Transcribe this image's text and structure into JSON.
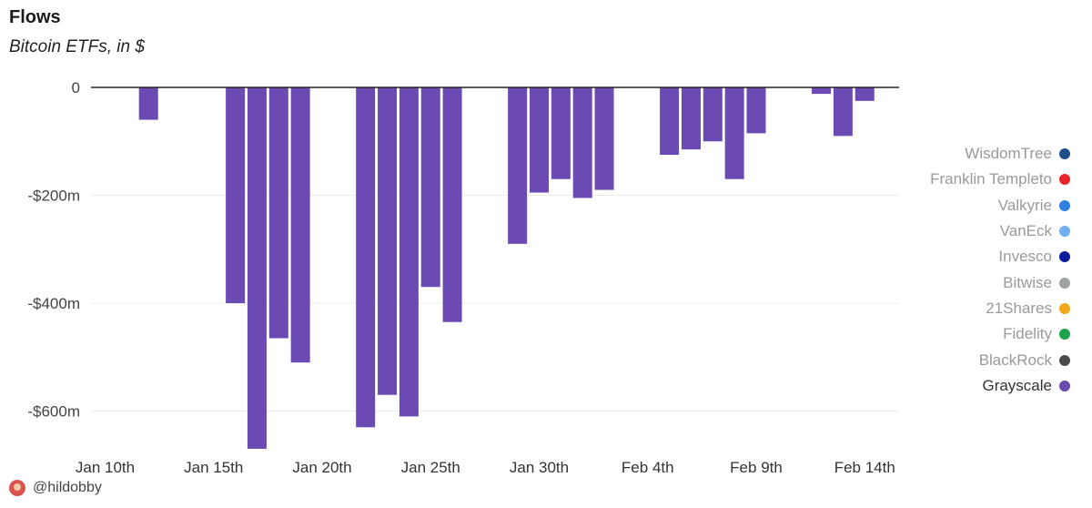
{
  "header": {
    "title": "Flows",
    "subtitle": "Bitcoin ETFs, in $"
  },
  "footer": {
    "handle": "@hildobby"
  },
  "legend": {
    "items": [
      {
        "label": "WisdomTree",
        "color": "#1f4e8c"
      },
      {
        "label": "Franklin Templeto",
        "color": "#e8262c"
      },
      {
        "label": "Valkyrie",
        "color": "#2f7fe0"
      },
      {
        "label": "VanEck",
        "color": "#6fb0ee"
      },
      {
        "label": "Invesco",
        "color": "#0a1a9c"
      },
      {
        "label": "Bitwise",
        "color": "#9fa3a0"
      },
      {
        "label": "21Shares",
        "color": "#f2a71b"
      },
      {
        "label": "Fidelity",
        "color": "#1aa34a"
      },
      {
        "label": "BlackRock",
        "color": "#4a4a4a"
      },
      {
        "label": "Grayscale",
        "color": "#6b4bb3"
      }
    ]
  },
  "chart_data": {
    "type": "bar",
    "title": "Flows",
    "subtitle": "Bitcoin ETFs, in $",
    "bar_color": "#6b4bb3",
    "ylim": [
      -680,
      0
    ],
    "y_ticks": [
      {
        "value": 0,
        "label": "0"
      },
      {
        "value": -200,
        "label": "-$200m"
      },
      {
        "value": -400,
        "label": "-$400m"
      },
      {
        "value": -600,
        "label": "-$600m"
      }
    ],
    "x_ticks": [
      {
        "day": 0,
        "label": "Jan 10th"
      },
      {
        "day": 5,
        "label": "Jan 15th"
      },
      {
        "day": 10,
        "label": "Jan 20th"
      },
      {
        "day": 15,
        "label": "Jan 25th"
      },
      {
        "day": 20,
        "label": "Jan 30th"
      },
      {
        "day": 25,
        "label": "Feb 4th"
      },
      {
        "day": 30,
        "label": "Feb 9th"
      },
      {
        "day": 35,
        "label": "Feb 14th"
      }
    ],
    "series": [
      {
        "name": "Grayscale",
        "points": [
          {
            "day": 2,
            "value": -60
          },
          {
            "day": 6,
            "value": -400
          },
          {
            "day": 7,
            "value": -670
          },
          {
            "day": 8,
            "value": -465
          },
          {
            "day": 9,
            "value": -510
          },
          {
            "day": 12,
            "value": -630
          },
          {
            "day": 13,
            "value": -570
          },
          {
            "day": 14,
            "value": -610
          },
          {
            "day": 15,
            "value": -370
          },
          {
            "day": 16,
            "value": -435
          },
          {
            "day": 19,
            "value": -290
          },
          {
            "day": 20,
            "value": -195
          },
          {
            "day": 21,
            "value": -170
          },
          {
            "day": 22,
            "value": -205
          },
          {
            "day": 23,
            "value": -190
          },
          {
            "day": 26,
            "value": -125
          },
          {
            "day": 27,
            "value": -115
          },
          {
            "day": 28,
            "value": -100
          },
          {
            "day": 29,
            "value": -170
          },
          {
            "day": 30,
            "value": -85
          },
          {
            "day": 33,
            "value": -12
          },
          {
            "day": 34,
            "value": -90
          },
          {
            "day": 35,
            "value": -25
          }
        ]
      }
    ]
  }
}
